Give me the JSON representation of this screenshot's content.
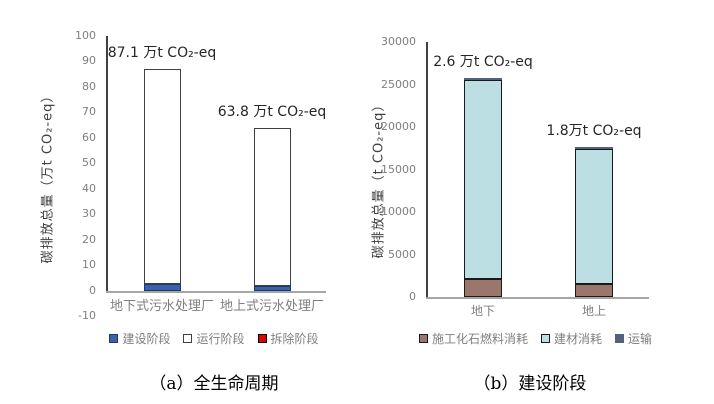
{
  "figure": {
    "captions": {
      "a": "（a）全生命周期",
      "b": "（b）建设阶段"
    }
  },
  "chart_data": [
    {
      "id": "chart-a",
      "type": "bar",
      "stacked": true,
      "title": "",
      "xlabel": "",
      "ylabel": "碳排放总量（万t CO₂-eq）",
      "ylim": [
        -10,
        100
      ],
      "ytick_step": 10,
      "grid": false,
      "legend_position": "bottom",
      "categories": [
        "地下式污水处理厂",
        "地上式污水处理厂"
      ],
      "series": [
        {
          "name": "建设阶段",
          "color": "#3a62a8",
          "border": "#1f3864",
          "values": [
            2.6,
            1.8
          ]
        },
        {
          "name": "运行阶段",
          "color": "#ffffff",
          "border": "#404040",
          "values": [
            84.5,
            62.0
          ]
        },
        {
          "name": "拆除阶段",
          "color": "#e00000",
          "border": "#000000",
          "values": [
            0,
            0
          ]
        }
      ],
      "totals": [
        87.1,
        63.8
      ],
      "annotations": [
        "87.1 万t CO₂-eq",
        "63.8 万t CO₂-eq"
      ]
    },
    {
      "id": "chart-b",
      "type": "bar",
      "stacked": true,
      "title": "",
      "xlabel": "",
      "ylabel": "碳排放总量（t CO₂-eq）",
      "ylim": [
        0,
        30000
      ],
      "ytick_step": 5000,
      "grid": false,
      "legend_position": "bottom",
      "categories": [
        "地下",
        "地上"
      ],
      "series": [
        {
          "name": "施工化石燃料消耗",
          "color": "#9a766c",
          "border": "#1a1a1a",
          "values": [
            2100,
            1500
          ]
        },
        {
          "name": "建材消耗",
          "color": "#bcdfe3",
          "border": "#1a1a1a",
          "values": [
            23400,
            15950
          ]
        },
        {
          "name": "运输",
          "color": "#55627d",
          "border": "#55627d",
          "values": [
            300,
            250
          ]
        }
      ],
      "totals": [
        25800,
        17700
      ],
      "annotations": [
        "2.6 万t CO₂-eq",
        "1.8万t CO₂-eq"
      ]
    }
  ]
}
